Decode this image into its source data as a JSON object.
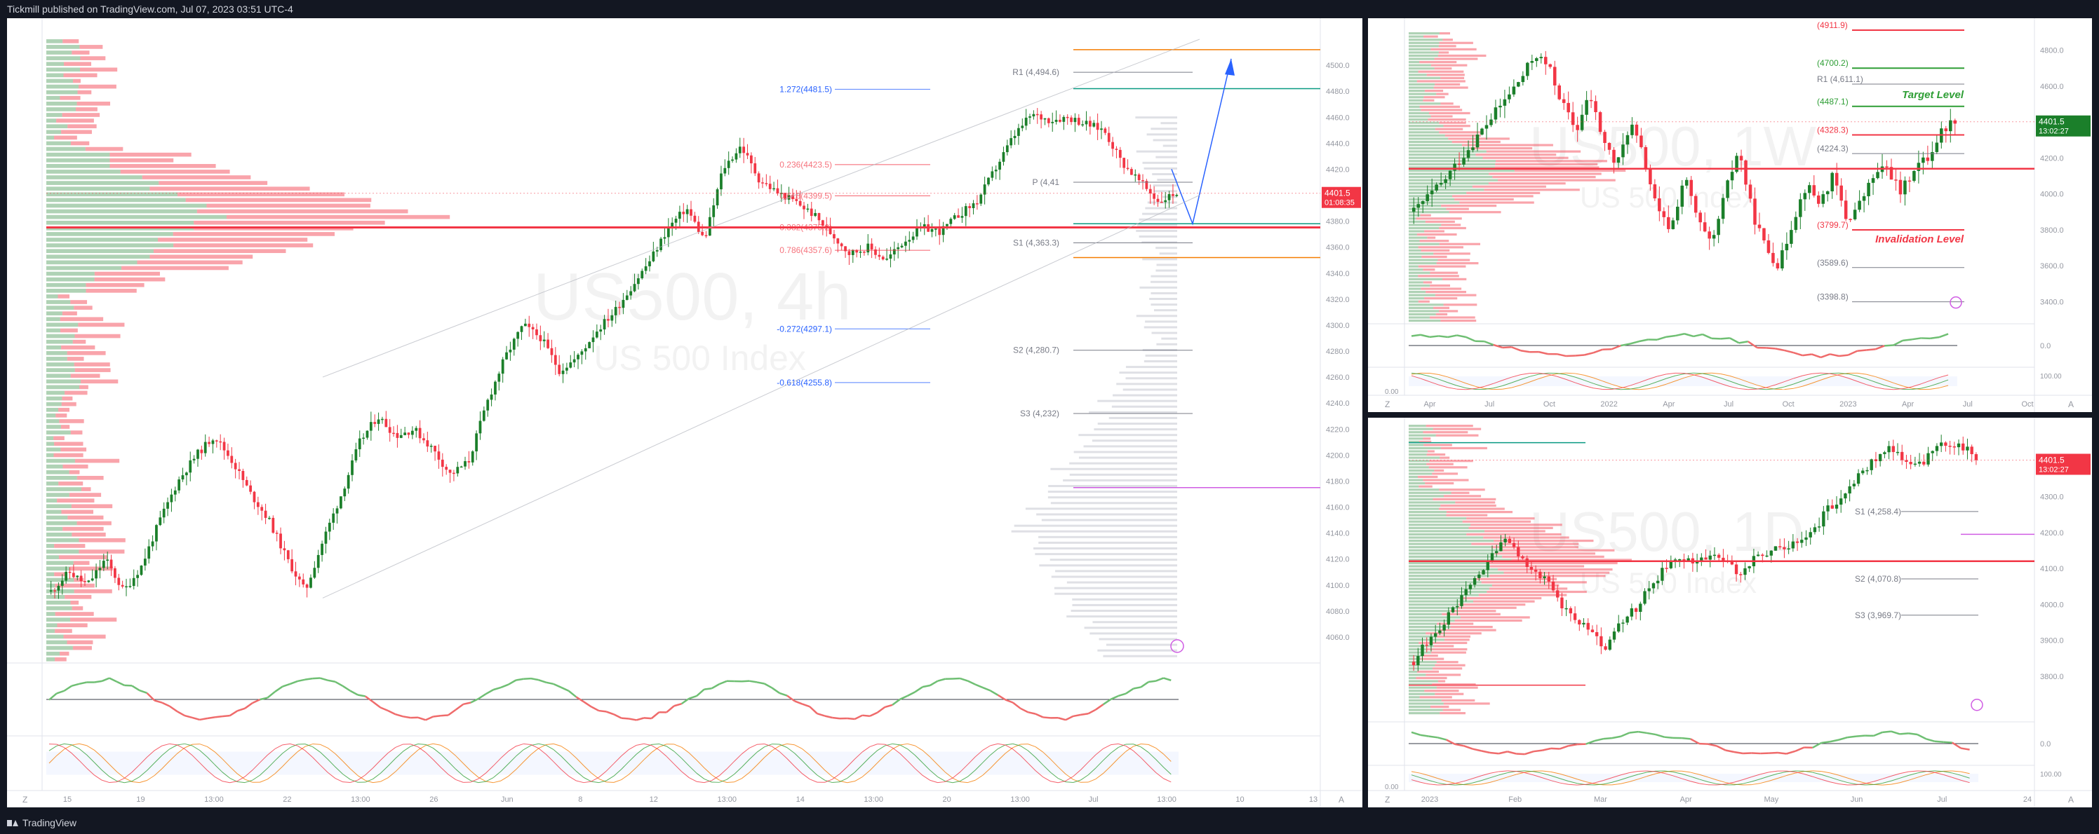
{
  "header": {
    "publish_text": "Tickmill published on TradingView.com, Jul 07, 2023 03:51 UTC-4"
  },
  "footer": {
    "brand": "TradingView"
  },
  "colors": {
    "up": "#089981",
    "candle_up": "#1b7f2a",
    "down": "#f23645",
    "line_blue": "#2962ff",
    "target_green": "#2e9e35",
    "purple": "#d05ce3"
  },
  "chart_data": [
    {
      "id": "US500-4h",
      "type": "candlestick",
      "watermark": {
        "symbol": "US500, 4h",
        "name": "US 500 Index"
      },
      "current_price": {
        "value": "4401.5",
        "countdown": "01:08:35"
      },
      "ylim": [
        4040,
        4520
      ],
      "y_ticks": [
        "4500.0",
        "4480.0",
        "4460.0",
        "4440.0",
        "4420.0",
        "4400.0",
        "4380.0",
        "4360.0",
        "4340.0",
        "4320.0",
        "4300.0",
        "4280.0",
        "4260.0",
        "4240.0",
        "4220.0",
        "4200.0",
        "4180.0",
        "4160.0",
        "4140.0",
        "4120.0",
        "4100.0",
        "4080.0",
        "4060.0"
      ],
      "x_ticks": [
        "15",
        "19",
        "13:00",
        "22",
        "13:00",
        "26",
        "Jun",
        "8",
        "12",
        "13:00",
        "14",
        "13:00",
        "20",
        "13:00",
        "Jul",
        "13:00",
        "10",
        "13"
      ],
      "fib_levels": [
        {
          "label": "1.272(4481.5)",
          "value": 4481.5
        },
        {
          "label": "0.236(4423.5)",
          "value": 4423.5
        },
        {
          "label": "0.618(4399.5)",
          "value": 4399.5
        },
        {
          "label": "0.382(4375.2)",
          "value": 4375.2
        },
        {
          "label": "0.786(4357.6)",
          "value": 4357.6
        },
        {
          "label": "-0.272(4297.1)",
          "value": 4297.1
        },
        {
          "label": "-0.618(4255.8)",
          "value": 4255.8
        }
      ],
      "pivots": [
        {
          "label": "R1 (4,494.6)",
          "value": 4494.6
        },
        {
          "label": "P (4,41",
          "value": 4410
        },
        {
          "label": "S1 (4,363.3)",
          "value": 4363.3
        },
        {
          "label": "S2 (4,280.7)",
          "value": 4280.7
        },
        {
          "label": "S3 (4,232)",
          "value": 4232
        }
      ],
      "price_path": [
        4095,
        4110,
        4100,
        4120,
        4095,
        4115,
        4150,
        4180,
        4200,
        4215,
        4195,
        4170,
        4150,
        4120,
        4095,
        4135,
        4170,
        4210,
        4230,
        4215,
        4220,
        4205,
        4185,
        4195,
        4240,
        4275,
        4300,
        4290,
        4265,
        4275,
        4295,
        4310,
        4330,
        4350,
        4375,
        4390,
        4365,
        4420,
        4438,
        4412,
        4402,
        4395,
        4385,
        4370,
        4355,
        4360,
        4350,
        4365,
        4375,
        4372,
        4385,
        4395,
        4420,
        4445,
        4462,
        4458,
        4460,
        4455,
        4450,
        4425,
        4410,
        4395,
        4402
      ]
    },
    {
      "id": "US500-1W",
      "type": "candlestick",
      "watermark": {
        "symbol": "US500, 1W",
        "name": "US 500 Index"
      },
      "current_price": {
        "value": "4401.5",
        "countdown": "13:02:27"
      },
      "ylim": [
        3300,
        4900
      ],
      "y_ticks": [
        "4800.0",
        "4600.0",
        "4400.0",
        "4200.0",
        "4000.0",
        "3800.0",
        "3600.0",
        "3400.0"
      ],
      "x_ticks": [
        "Apr",
        "Jul",
        "Oct",
        "2022",
        "Apr",
        "Jul",
        "Oct",
        "2023",
        "Apr",
        "Jul",
        "Oct"
      ],
      "levels": [
        {
          "label": "(4911.9)",
          "value": 4911.9,
          "color": "red"
        },
        {
          "label": "(4700.2)",
          "value": 4700.2,
          "color": "green"
        },
        {
          "label": "R1 (4,611.1)",
          "value": 4611.1,
          "color": "gray"
        },
        {
          "label": "(4487.1)",
          "value": 4487.1,
          "color": "green"
        },
        {
          "label": "(4328.3)",
          "value": 4328.3,
          "color": "red"
        },
        {
          "label": "(4224.3)",
          "value": 4224.3,
          "color": "gray"
        },
        {
          "label": "(3799.7)",
          "value": 3799.7,
          "color": "red"
        },
        {
          "label": "(3589.6)",
          "value": 3589.6,
          "color": "gray"
        },
        {
          "label": "(3398.8)",
          "value": 3398.8,
          "color": "gray"
        }
      ],
      "annotations": {
        "target": "Target Level",
        "invalidation": "Invalidation Level"
      },
      "oscillator_ticks": [
        "0.0",
        "100.00",
        "0.00"
      ],
      "price_path": [
        3900,
        3980,
        4050,
        4150,
        4250,
        4350,
        4450,
        4550,
        4650,
        4780,
        4700,
        4500,
        4350,
        4550,
        4300,
        4150,
        4400,
        4200,
        3900,
        3800,
        4100,
        3850,
        3700,
        4000,
        4250,
        3900,
        3700,
        3600,
        3850,
        4050,
        3950,
        4100,
        3850,
        3950,
        4100,
        4150,
        4000,
        4150,
        4200,
        4350,
        4420
      ]
    },
    {
      "id": "US500-1D",
      "type": "candlestick",
      "watermark": {
        "symbol": "US500, 1D",
        "name": "US 500 Index"
      },
      "current_price": {
        "value": "4401.5",
        "countdown": "13:02:27"
      },
      "ylim": [
        3700,
        4500
      ],
      "y_ticks": [
        "4400.0",
        "4300.0",
        "4200.0",
        "4100.0",
        "4000.0",
        "3900.0",
        "3800.0"
      ],
      "x_ticks": [
        "2023",
        "Feb",
        "Mar",
        "Apr",
        "May",
        "Jun",
        "Jul",
        "24"
      ],
      "pivots": [
        {
          "label": "S1 (4,258.4)",
          "value": 4258.4
        },
        {
          "label": "S2 (4,070.8)",
          "value": 4070.8
        },
        {
          "label": "S3 (3,969.7)",
          "value": 3969.7
        }
      ],
      "oscillator_ticks": [
        "0.0",
        "100.00",
        "0.00"
      ],
      "price_path": [
        3840,
        3900,
        3950,
        4000,
        4060,
        4120,
        4180,
        4140,
        4100,
        4060,
        4000,
        3960,
        3920,
        3870,
        3950,
        3990,
        4050,
        4100,
        4130,
        4110,
        4140,
        4120,
        4080,
        4130,
        4150,
        4160,
        4180,
        4200,
        4270,
        4300,
        4360,
        4400,
        4440,
        4400,
        4380,
        4420,
        4450,
        4440,
        4410
      ]
    }
  ]
}
